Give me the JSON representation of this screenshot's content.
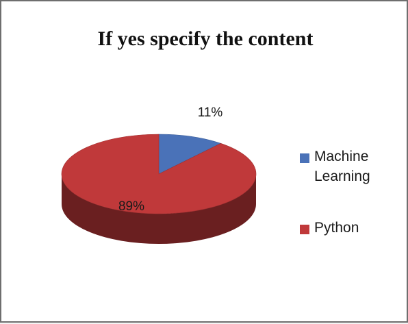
{
  "chart_data": {
    "type": "pie",
    "title": "If yes specify the content",
    "slices": [
      {
        "label": "Machine Learning",
        "value": 11,
        "data_label": "11%",
        "color": "#4a72b8"
      },
      {
        "label": "Python",
        "value": 89,
        "data_label": "89%",
        "color": "#c0393a"
      }
    ],
    "legend_position": "right",
    "style": "3d"
  }
}
